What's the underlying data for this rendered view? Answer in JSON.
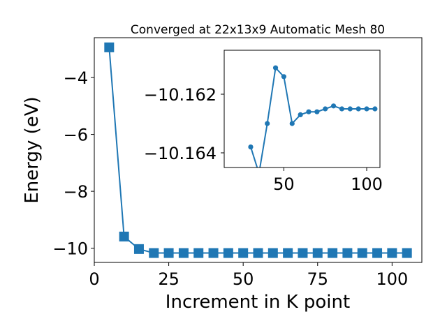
{
  "chart_data": [
    {
      "type": "line",
      "title": "Converged at 22x13x9 Automatic Mesh 80",
      "xlabel": "Increment in K point",
      "ylabel": "Energy (eV)",
      "xlim": [
        0,
        110
      ],
      "ylim": [
        -10.5,
        -2.6
      ],
      "xticks": [
        "0",
        "25",
        "50",
        "75",
        "100"
      ],
      "yticks": [
        "−10",
        "−8",
        "−6",
        "−4"
      ],
      "marker": "square",
      "color": "#1f77b4",
      "grid": false,
      "x": [
        5,
        10,
        15,
        20,
        25,
        30,
        35,
        40,
        45,
        50,
        55,
        60,
        65,
        70,
        75,
        80,
        85,
        90,
        95,
        100,
        105
      ],
      "y": [
        -2.94,
        -9.59,
        -10.03,
        -10.17,
        -10.17,
        -10.17,
        -10.17,
        -10.17,
        -10.17,
        -10.17,
        -10.17,
        -10.17,
        -10.17,
        -10.17,
        -10.17,
        -10.17,
        -10.17,
        -10.17,
        -10.17,
        -10.17,
        -10.17
      ]
    },
    {
      "type": "line",
      "title": "",
      "xlabel": "",
      "ylabel": "",
      "inset": true,
      "xlim": [
        14,
        108
      ],
      "ylim": [
        -10.1645,
        -10.1605
      ],
      "xticks": [
        "50",
        "100"
      ],
      "yticks": [
        "−10.164",
        "−10.162"
      ],
      "marker": "circle",
      "color": "#1f77b4",
      "grid": false,
      "x": [
        30,
        35,
        40,
        45,
        50,
        55,
        60,
        65,
        70,
        75,
        80,
        85,
        90,
        95,
        100,
        105
      ],
      "y": [
        -10.1638,
        -10.1647,
        -10.163,
        -10.1611,
        -10.1614,
        -10.163,
        -10.1627,
        -10.1626,
        -10.1626,
        -10.1625,
        -10.1624,
        -10.1625,
        -10.1625,
        -10.1625,
        -10.1625,
        -10.1625
      ]
    }
  ]
}
